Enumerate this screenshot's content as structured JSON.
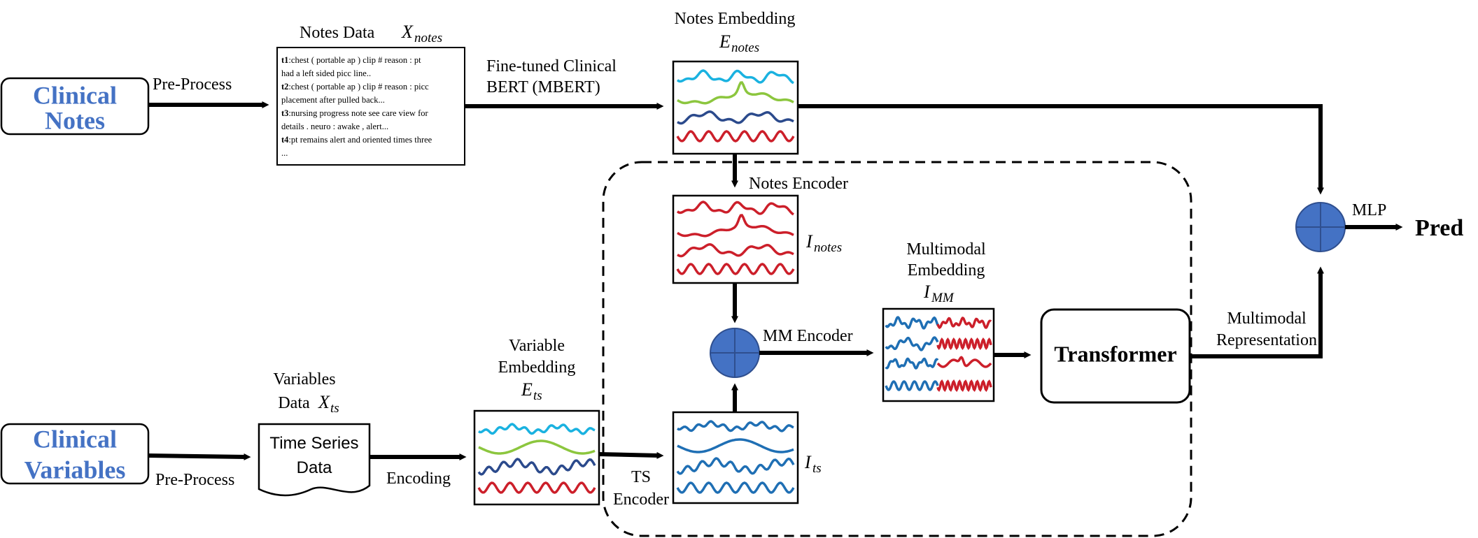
{
  "inputs": {
    "clinical_notes": [
      "Clinical",
      "Notes"
    ],
    "clinical_variables": [
      "Clinical",
      "Variables"
    ]
  },
  "labels": {
    "preprocess_top": "Pre-Process",
    "preprocess_bottom": "Pre-Process",
    "notes_data": "Notes Data",
    "notes_data_var": "X",
    "notes_data_sub": "notes",
    "bert": [
      "Fine-tuned Clinical",
      "BERT (MBERT)"
    ],
    "notes_embedding": "Notes Embedding",
    "notes_embedding_var": "E",
    "notes_embedding_sub": "notes",
    "notes_encoder": "Notes Encoder",
    "i_notes_var": "I",
    "i_notes_sub": "notes",
    "variables_data": [
      "Variables",
      "Data"
    ],
    "variables_data_var": "X",
    "variables_data_sub": "ts",
    "time_series_data": [
      "Time Series",
      "Data"
    ],
    "encoding": "Encoding",
    "variable_embedding": [
      "Variable",
      "Embedding"
    ],
    "variable_embedding_var": "E",
    "variable_embedding_sub": "ts",
    "ts_encoder": [
      "TS",
      "Encoder"
    ],
    "i_ts_var": "I",
    "i_ts_sub": "ts",
    "mm_encoder": "MM Encoder",
    "multimodal_embedding": [
      "Multimodal",
      "Embedding"
    ],
    "i_mm_var": "I",
    "i_mm_sub": "MM",
    "transformer": "Transformer",
    "multimodal_representation": [
      "Multimodal",
      "Representation"
    ],
    "mlp": "MLP",
    "pred": "Pred"
  },
  "notes_text": [
    {
      "tag": "t1",
      "text": ":chest ( portable ap ) clip # reason : pt"
    },
    {
      "tag": "",
      "text": "had a left sided picc line.."
    },
    {
      "tag": "t2",
      "text": ":chest ( portable ap ) clip # reason : picc"
    },
    {
      "tag": "",
      "text": "placement after pulled back..."
    },
    {
      "tag": "t3",
      "text": ":nursing progress note see care view for"
    },
    {
      "tag": "",
      "text": "details . neuro : awake , alert..."
    },
    {
      "tag": "t4",
      "text": ":pt remains alert and oriented times three"
    },
    {
      "tag": "",
      "text": "..."
    }
  ],
  "colors": {
    "accent_blue": "#4472c4",
    "wave_cyan": "#1ab2e0",
    "wave_green": "#8cc63e",
    "wave_navy": "#2b4a8c",
    "wave_red": "#cc1f2a",
    "wave_blue": "#1f6fb4",
    "fusion_fill": "#4472c4"
  }
}
